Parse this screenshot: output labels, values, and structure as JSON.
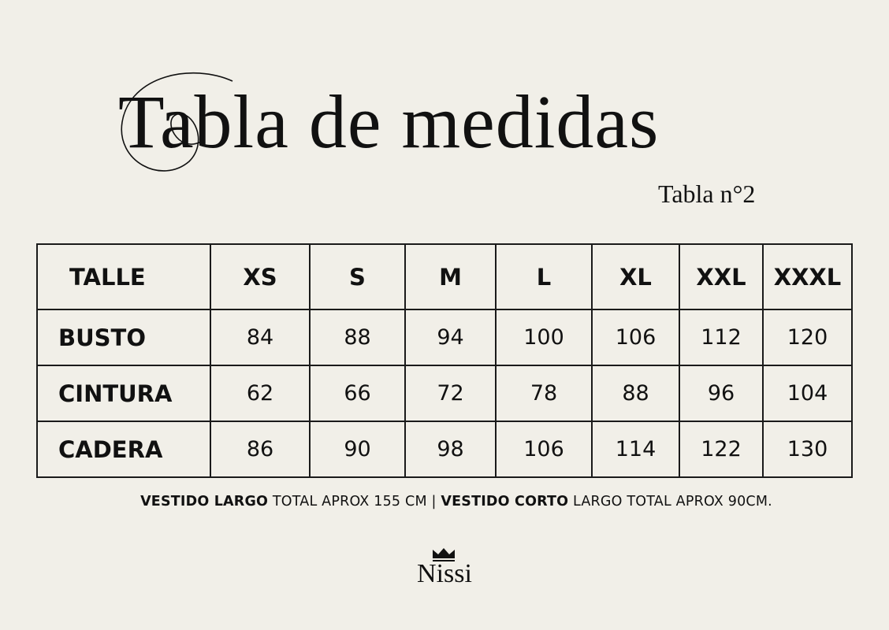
{
  "title": "Tabla de medidas",
  "subtitle": "Tabla n°2",
  "table": {
    "header_label": "TALLE",
    "sizes": [
      "XS",
      "S",
      "M",
      "L",
      "XL",
      "XXL",
      "XXXL"
    ],
    "rows": [
      {
        "label": "BUSTO",
        "values": [
          "84",
          "88",
          "94",
          "100",
          "106",
          "112",
          "120"
        ]
      },
      {
        "label": "CINTURA",
        "values": [
          "62",
          "66",
          "72",
          "78",
          "88",
          "96",
          "104"
        ]
      },
      {
        "label": "CADERA",
        "values": [
          "86",
          "90",
          "98",
          "106",
          "114",
          "122",
          "130"
        ]
      }
    ]
  },
  "note": {
    "part1_bold": "VESTIDO LARGO",
    "part1": " TOTAL APROX 155 CM | ",
    "part2_bold": "VESTIDO CORTO",
    "part2": " LARGO TOTAL APROX 90CM."
  },
  "logo": {
    "name": "Nissi",
    "icon": "crown-icon"
  }
}
